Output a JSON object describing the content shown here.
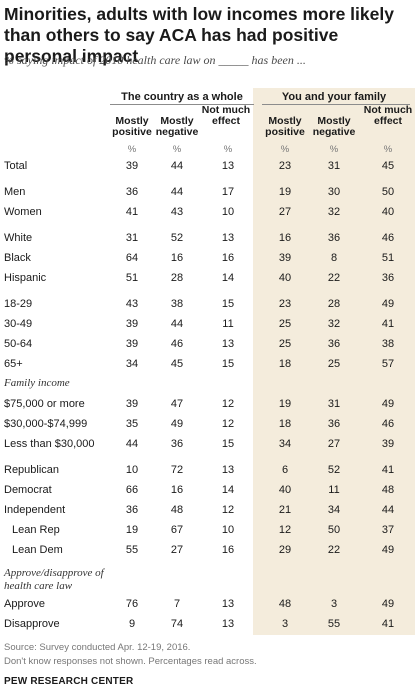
{
  "title": "Minorities, adults with low incomes more likely than others to say ACA has had positive personal impact",
  "subtitle": "% saying impact of 2010 health care law on _____ has been ...",
  "groups": {
    "country": "The country as a whole",
    "family": "You and your family"
  },
  "columns": {
    "mostly_positive": "Mostly positive",
    "mostly_negative": "Mostly negative",
    "not_much_effect": "Not much effect",
    "pct": "%"
  },
  "sections": {
    "family_income": "Family income",
    "approve": "Approve/disapprove of health care law"
  },
  "rows": [
    {
      "label": "Total",
      "values": [
        "39",
        "44",
        "13",
        "23",
        "31",
        "45"
      ]
    },
    {
      "label": "Men",
      "values": [
        "36",
        "44",
        "17",
        "19",
        "30",
        "50"
      ]
    },
    {
      "label": "Women",
      "values": [
        "41",
        "43",
        "10",
        "27",
        "32",
        "40"
      ]
    },
    {
      "label": "White",
      "values": [
        "31",
        "52",
        "13",
        "16",
        "36",
        "46"
      ]
    },
    {
      "label": "Black",
      "values": [
        "64",
        "16",
        "16",
        "39",
        "8",
        "51"
      ]
    },
    {
      "label": "Hispanic",
      "values": [
        "51",
        "28",
        "14",
        "40",
        "22",
        "36"
      ]
    },
    {
      "label": "18-29",
      "values": [
        "43",
        "38",
        "15",
        "23",
        "28",
        "49"
      ]
    },
    {
      "label": "30-49",
      "values": [
        "39",
        "44",
        "11",
        "25",
        "32",
        "41"
      ]
    },
    {
      "label": "50-64",
      "values": [
        "39",
        "46",
        "13",
        "25",
        "36",
        "38"
      ]
    },
    {
      "label": "65+",
      "values": [
        "34",
        "45",
        "15",
        "18",
        "25",
        "57"
      ]
    },
    {
      "label": "$75,000 or more",
      "values": [
        "39",
        "47",
        "12",
        "19",
        "31",
        "49"
      ]
    },
    {
      "label": "$30,000-$74,999",
      "values": [
        "35",
        "49",
        "12",
        "18",
        "36",
        "46"
      ]
    },
    {
      "label": "Less than $30,000",
      "values": [
        "44",
        "36",
        "15",
        "34",
        "27",
        "39"
      ]
    },
    {
      "label": "Republican",
      "values": [
        "10",
        "72",
        "13",
        "6",
        "52",
        "41"
      ]
    },
    {
      "label": "Democrat",
      "values": [
        "66",
        "16",
        "14",
        "40",
        "11",
        "48"
      ]
    },
    {
      "label": "Independent",
      "values": [
        "36",
        "48",
        "12",
        "21",
        "34",
        "44"
      ]
    },
    {
      "label": "Lean Rep",
      "values": [
        "19",
        "67",
        "10",
        "12",
        "50",
        "37"
      ]
    },
    {
      "label": "Lean Dem",
      "values": [
        "55",
        "27",
        "16",
        "29",
        "22",
        "49"
      ]
    },
    {
      "label": "Approve",
      "values": [
        "76",
        "7",
        "13",
        "48",
        "3",
        "49"
      ]
    },
    {
      "label": "Disapprove",
      "values": [
        "9",
        "74",
        "13",
        "3",
        "55",
        "41"
      ]
    }
  ],
  "notes": {
    "source": "Source: Survey conducted Apr. 12-19, 2016.",
    "note": "Don't know responses not shown. Percentages read across.",
    "org": "PEW RESEARCH CENTER"
  }
}
